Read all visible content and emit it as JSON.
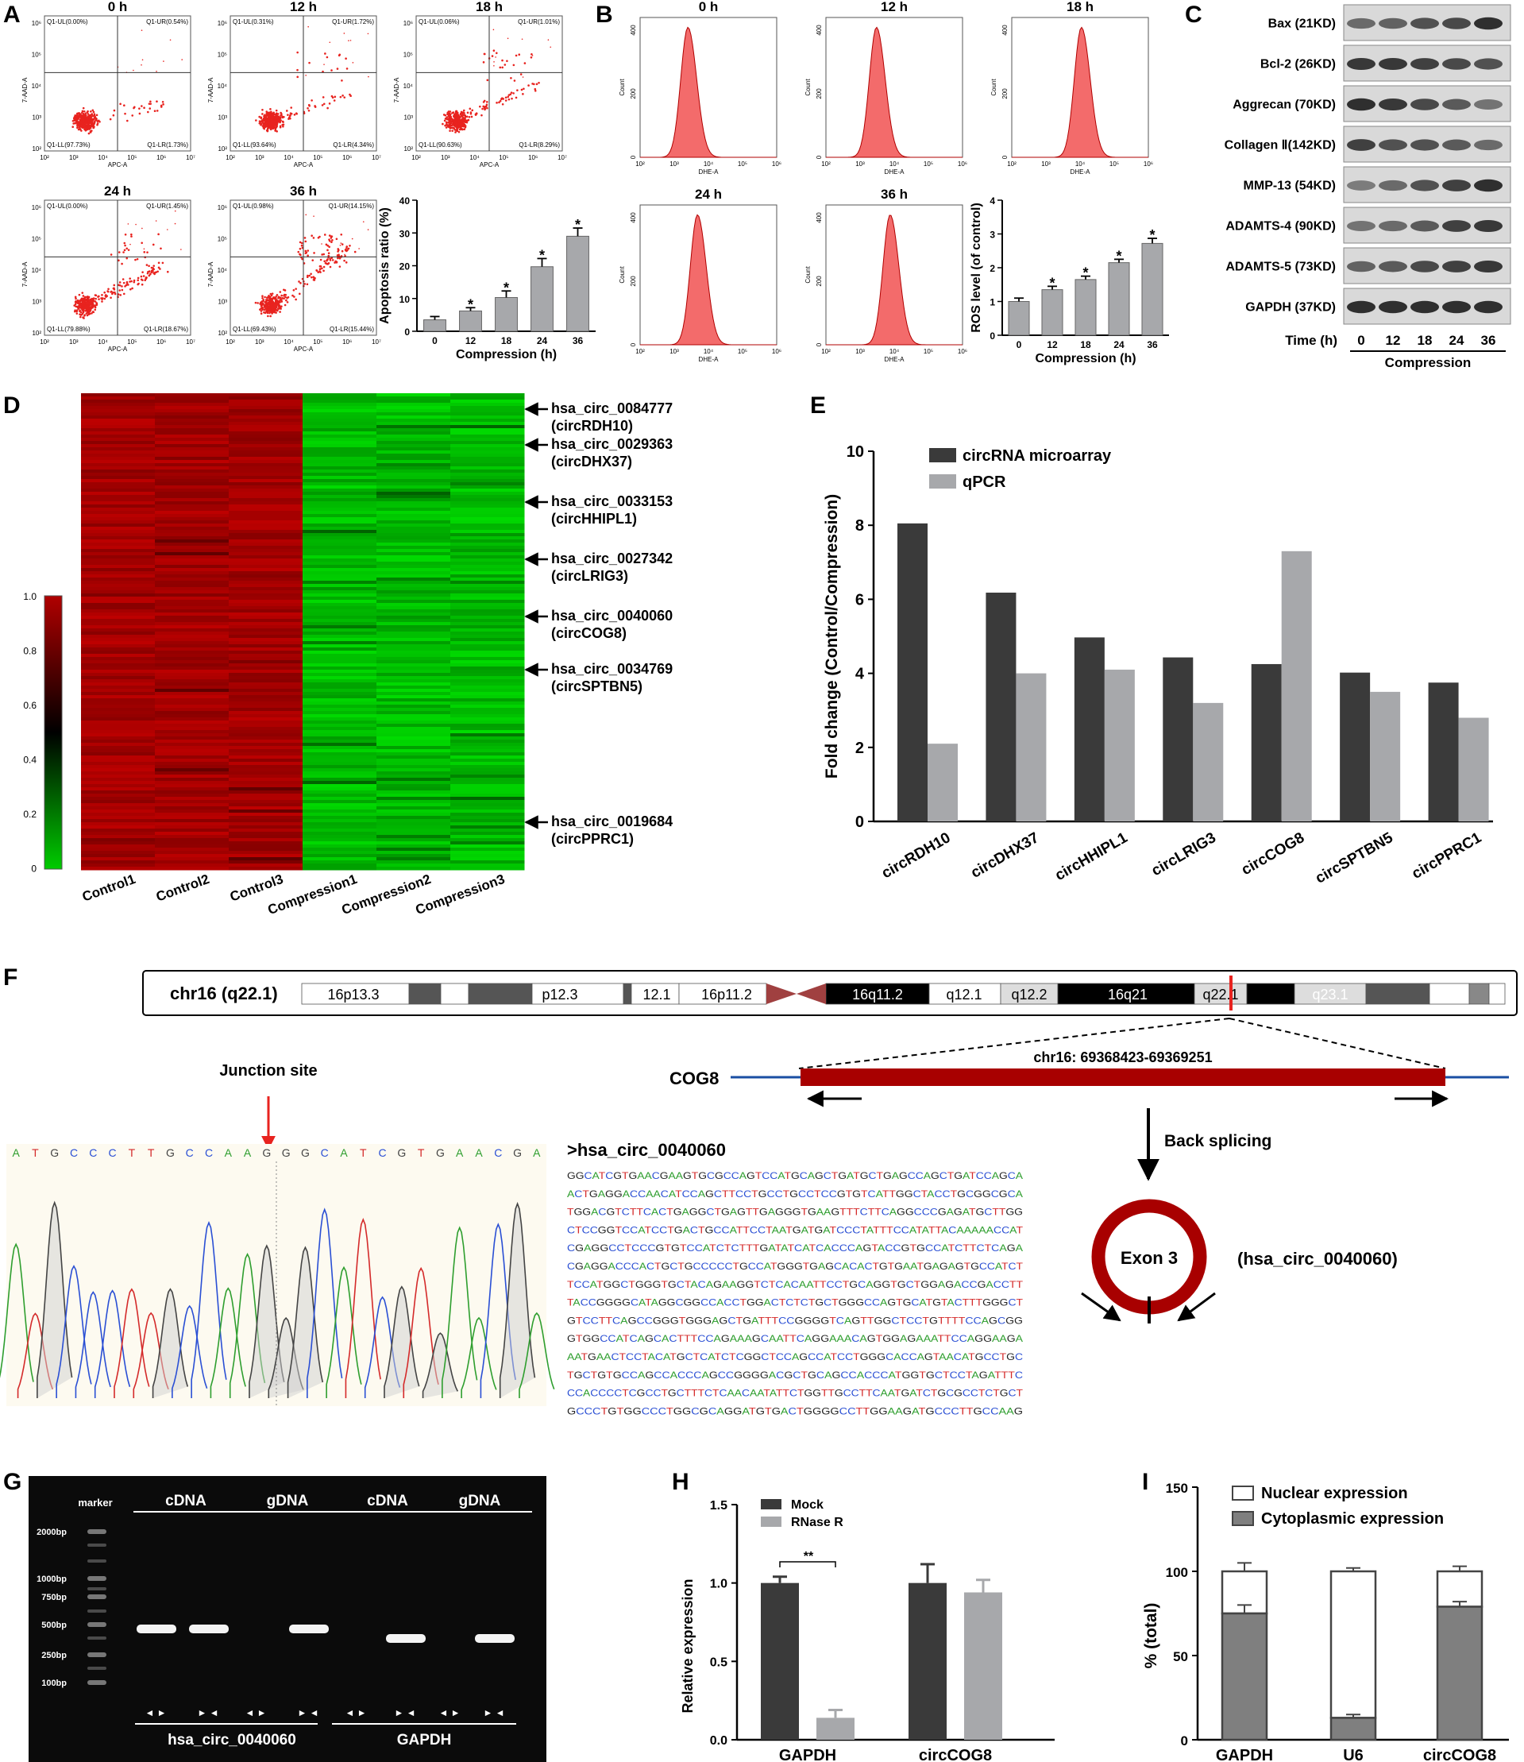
{
  "panels": {
    "A": {
      "letter": "A",
      "plots": [
        {
          "time": "0 h",
          "ul": "Q1-UL(0.00%)",
          "ur": "Q1-UR(0.54%)",
          "ll": "Q1-LL(97.73%)",
          "lr": "Q1-LR(1.73%)"
        },
        {
          "time": "12 h",
          "ul": "Q1-UL(0.31%)",
          "ur": "Q1-UR(1.72%)",
          "ll": "Q1-LL(93.64%)",
          "lr": "Q1-LR(4.34%)"
        },
        {
          "time": "18 h",
          "ul": "Q1-UL(0.06%)",
          "ur": "Q1-UR(1.01%)",
          "ll": "Q1-LL(90.63%)",
          "lr": "Q1-LR(8.29%)"
        },
        {
          "time": "24 h",
          "ul": "Q1-UL(0.00%)",
          "ur": "Q1-UR(1.45%)",
          "ll": "Q1-LL(79.88%)",
          "lr": "Q1-LR(18.67%)"
        },
        {
          "time": "36 h",
          "ul": "Q1-UL(0.98%)",
          "ur": "Q1-UR(14.15%)",
          "ll": "Q1-LL(69.43%)",
          "lr": "Q1-LR(15.44%)"
        }
      ],
      "x_axis_label": "APC-A",
      "y_axis_label": "7-AAD-A",
      "decade_labels": [
        "10²",
        "10³",
        "10⁴",
        "10⁵",
        "10⁶",
        "10⁷"
      ],
      "colors": {
        "dots": "#e8231f"
      }
    },
    "B": {
      "letter": "B",
      "plots": [
        {
          "time": "0 h"
        },
        {
          "time": "12 h"
        },
        {
          "time": "18 h"
        },
        {
          "time": "24 h"
        },
        {
          "time": "36 h"
        }
      ],
      "x_axis_label": "DHE-A",
      "y_axis_label": "Count",
      "y_ticks": [
        "0",
        "200",
        "400"
      ],
      "decade_labels": [
        "10²",
        "10³",
        "10⁴",
        "10⁵",
        "10⁶"
      ],
      "colors": {
        "fill": "#f36b6b",
        "stroke": "#b00000"
      }
    },
    "C": {
      "letter": "C",
      "bands": [
        "Bax (21KD)",
        "Bcl-2 (26KD)",
        "Aggrecan (70KD)",
        "Collagen Ⅱ(142KD)",
        "MMP-13 (54KD)",
        "ADAMTS-4 (90KD)",
        "ADAMTS-5 (73KD)",
        "GAPDH (37KD)"
      ],
      "time_label": "Time (h)",
      "times": [
        "0",
        "12",
        "18",
        "24",
        "36"
      ],
      "group_label": "Compression",
      "band_intensity": [
        [
          0.55,
          0.6,
          0.7,
          0.75,
          0.9
        ],
        [
          0.85,
          0.85,
          0.8,
          0.75,
          0.7
        ],
        [
          0.9,
          0.85,
          0.75,
          0.65,
          0.5
        ],
        [
          0.8,
          0.7,
          0.7,
          0.65,
          0.55
        ],
        [
          0.45,
          0.55,
          0.7,
          0.8,
          0.9
        ],
        [
          0.5,
          0.55,
          0.65,
          0.8,
          0.85
        ],
        [
          0.6,
          0.65,
          0.75,
          0.8,
          0.85
        ],
        [
          0.9,
          0.9,
          0.9,
          0.9,
          0.9
        ]
      ]
    },
    "D": {
      "letter": "D",
      "columns": [
        "Control1",
        "Control2",
        "Control3",
        "Compression1",
        "Compression2",
        "Compression3"
      ],
      "scale_ticks": [
        "1.0",
        "0.8",
        "0.6",
        "0.4",
        "0.2",
        "0"
      ],
      "annotations": [
        {
          "id": "hsa_circ_0084777",
          "gene": "(circRDH10)"
        },
        {
          "id": "hsa_circ_0029363",
          "gene": "(circDHX37)"
        },
        {
          "id": "hsa_circ_0033153",
          "gene": "(circHHIPL1)"
        },
        {
          "id": "hsa_circ_0027342",
          "gene": "(circLRIG3)"
        },
        {
          "id": "hsa_circ_0040060",
          "gene": "(circCOG8)"
        },
        {
          "id": "hsa_circ_0034769",
          "gene": "(circSPTBN5)"
        },
        {
          "id": "hsa_circ_0019684",
          "gene": "(circPPRC1)"
        }
      ],
      "colors": {
        "high": "#b00000",
        "low": "#00cc00",
        "mid": "#000000"
      }
    },
    "E": {
      "letter": "E"
    },
    "F": {
      "letter": "F",
      "chromosome_label": "chr16 (q22.1)",
      "bands": [
        "16p13.3",
        "p12.3",
        "12.1",
        "16p11.2",
        "16q11.2",
        "q12.1",
        "q12.2",
        "16q21",
        "q22.1",
        "q23.1"
      ],
      "gene_label": "COG8",
      "coords": "chr16: 69368423-69369251",
      "back_splicing": "Back splicing",
      "exon": "Exon 3",
      "circ_name": "(hsa_circ_0040060)",
      "junction_label": "Junction site",
      "trace_bases": [
        "A",
        "T",
        "G",
        "C",
        "C",
        "C",
        "T",
        "T",
        "G",
        "C",
        "C",
        "A",
        "A",
        "G",
        "G",
        "G",
        "C",
        "A",
        "T",
        "C",
        "G",
        "T",
        "G",
        "A",
        "A",
        "C",
        "G",
        "A"
      ],
      "sequence_title": ">hsa_circ_0040060",
      "sequence_lines": [
        "GGCATCGTGAACGAAGTGCGCCAGTCCATGCAGCTGATGCTGAGCCAGCTGATCCAGCA",
        "ACTGAGGACCAACATCCAGCTTCCTGCCTGCCTCCGTGTCATTGGCTACCTGCGGCGCA",
        "TGGACGTCTTCACTGAGGCTGAGTTGAGGGTGAAGTTTCTTCAGGCCCGAGATGCTTGG",
        "CTCCGGTCCATCCTGACTGCCATTCCTAATGATGATCCCTATTTCCATATTACAAAAACCAT",
        "CGAGGCCTCCCGTGTCCATCTCTTTGATATCATCACCCAGTACCGTGCCATCTTCTCAGA",
        "CGAGGACCCACTGCTGCCCCCTGCCATGGGTGAGCACACTGTGAATGAGAGTGCCATCT",
        "TCCATGGCTGGGTGCTACAGAAGGTCTCACAATTCCTGCAGGTGCTGGAGACCGACCTT",
        "TACCGGGGCATAGGCGGCCACCTGGACTCTCTGCTGGGCCAGTGCATGTACTTTGGGCT",
        "GTCCTTCAGCCGGGTGGGAGCTGATTTCCGGGGTCAGTTGGCTCCTGTTTTCCAGCGG",
        "GTGGCCATCAGCACTTTCCAGAAAGCAATTCAGGAAACAGTGGAGAAATTCCAGGAAGA",
        "AATGAACTCCTACATGCTCATCTCGGCTCCAGCCATCCTGGGCACCAGTAACATGCCTGC",
        "TGCTGTGCCAGCCACCCAGCCGGGGACGCTGCAGCCACCCATGGTGCTCCTAGATTTC",
        "CCACCCCTCGCCTGCTTTCTCAACAATATTCTGGTTGCCTTCAATGATCTGCGCCTCTGCT",
        "GCCCTGTGGCCCTGGCGCAGGATGTGACTGGGGCCTTGGAAGATGCCCTTGCCAAG"
      ],
      "base_colors": {
        "A": "#2e9e2e",
        "T": "#d42a2a",
        "G": "#222222",
        "C": "#2a4fd4"
      }
    },
    "G": {
      "letter": "G",
      "marker_label": "marker",
      "ladder": [
        "2000bp",
        "1000bp",
        "750bp",
        "500bp",
        "250bp",
        "100bp"
      ],
      "group_labels": [
        "cDNA",
        "gDNA",
        "cDNA",
        "gDNA"
      ],
      "bottom_labels": [
        "hsa_circ_0040060",
        "GAPDH"
      ],
      "arrow_pairs": [
        "◄ ►",
        "► ◄",
        "◄ ►",
        "► ◄",
        "◄ ►",
        "► ◄",
        "◄ ►",
        "► ◄"
      ],
      "lanes": [
        {
          "band": true,
          "size": 500
        },
        {
          "band": true,
          "size": 500
        },
        {
          "band": false,
          "size": 0
        },
        {
          "band": true,
          "size": 500
        },
        {
          "band": false,
          "size": 0
        },
        {
          "band": true,
          "size": 380
        },
        {
          "band": false,
          "size": 0
        },
        {
          "band": true,
          "size": 380
        }
      ]
    },
    "H": {
      "letter": "H"
    },
    "I": {
      "letter": "I"
    }
  },
  "chart_data": [
    {
      "id": "A-bar",
      "type": "bar",
      "categories": [
        "0",
        "12",
        "18",
        "24",
        "36"
      ],
      "values": [
        3.5,
        6.2,
        10.3,
        19.7,
        29.0
      ],
      "errors": [
        1.0,
        1.0,
        2.0,
        2.5,
        2.5
      ],
      "significance": [
        "",
        "*",
        "*",
        "*",
        "*"
      ],
      "xlabel": "Compression (h)",
      "ylabel": "Apoptosis ratio (%)",
      "yticks": [
        0,
        10,
        20,
        30,
        40
      ],
      "ylim": [
        0,
        40
      ]
    },
    {
      "id": "B-bar",
      "type": "bar",
      "categories": [
        "0",
        "12",
        "18",
        "24",
        "36"
      ],
      "values": [
        1.0,
        1.35,
        1.65,
        2.15,
        2.72
      ],
      "errors": [
        0.1,
        0.1,
        0.1,
        0.1,
        0.15
      ],
      "significance": [
        "",
        "*",
        "*",
        "*",
        "*"
      ],
      "xlabel": "Compression (h)",
      "ylabel": "ROS level (of control)",
      "yticks": [
        0,
        1,
        2,
        3,
        4
      ],
      "ylim": [
        0,
        4
      ]
    },
    {
      "id": "E-bar",
      "type": "bar",
      "categories": [
        "circRDH10",
        "circDHX37",
        "circHHIPL1",
        "circLRIG3",
        "circCOG8",
        "circSPTBN5",
        "circPPRC1"
      ],
      "series": [
        {
          "name": "circRNA microarray",
          "values": [
            8.05,
            6.18,
            4.97,
            4.43,
            4.25,
            4.02,
            3.75
          ],
          "color": "#3a3a3a"
        },
        {
          "name": "qPCR",
          "values": [
            2.1,
            4.0,
            4.1,
            3.2,
            7.3,
            3.5,
            2.8
          ],
          "color": "#a7a8ab"
        }
      ],
      "ylabel": "Fold change (Control/Compression)",
      "yticks": [
        0,
        2,
        4,
        6,
        8,
        10
      ],
      "ylim": [
        0,
        10
      ],
      "legend": "top-left"
    },
    {
      "id": "H-bar",
      "type": "bar",
      "categories": [
        "GAPDH",
        "circCOG8"
      ],
      "series": [
        {
          "name": "Mock",
          "values": [
            1.0,
            1.0
          ],
          "errors": [
            0.04,
            0.12
          ],
          "color": "#3a3a3a"
        },
        {
          "name": "RNase R",
          "values": [
            0.14,
            0.94
          ],
          "errors": [
            0.05,
            0.08
          ],
          "color": "#a7a8ab"
        }
      ],
      "significance": "**",
      "ylabel": "Relative expression",
      "yticks": [
        "0.0",
        "0.5",
        "1.0",
        "1.5"
      ],
      "ylim": [
        0,
        1.5
      ],
      "legend": "top-left"
    },
    {
      "id": "I-bar",
      "type": "bar",
      "stacked": true,
      "categories": [
        "GAPDH",
        "U6",
        "circCOG8"
      ],
      "series": [
        {
          "name": "Nuclear expression",
          "values": [
            25,
            87,
            21
          ],
          "color": "#ffffff"
        },
        {
          "name": "Cytoplasmic expression",
          "values": [
            75,
            13,
            79
          ],
          "errors": [
            5,
            2,
            3
          ],
          "color": "#7f7f7f"
        }
      ],
      "top_errors": [
        5,
        2,
        3
      ],
      "ylabel": "% (total)",
      "yticks": [
        0,
        50,
        100,
        150
      ],
      "ylim": [
        0,
        150
      ],
      "legend": "top-left"
    }
  ]
}
